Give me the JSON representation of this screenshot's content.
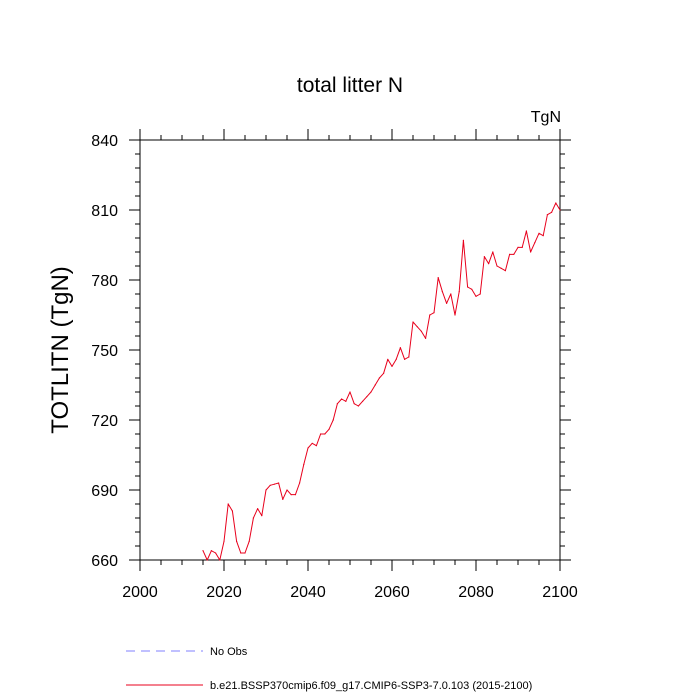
{
  "chart_data": {
    "type": "line",
    "title": "total litter N",
    "units_label": "TgN",
    "ylabel": "TOTLITN  (TgN)",
    "xlabel": "",
    "xlim": [
      2000,
      2100
    ],
    "ylim": [
      660,
      840
    ],
    "x_ticks": [
      2000,
      2020,
      2040,
      2060,
      2080,
      2100
    ],
    "y_ticks": [
      660,
      690,
      720,
      750,
      780,
      810,
      840
    ],
    "x_ticks_labels": [
      "2000",
      "2020",
      "2040",
      "2060",
      "2080",
      "2100"
    ],
    "y_ticks_labels": [
      "660",
      "690",
      "720",
      "750",
      "780",
      "810",
      "840"
    ],
    "grid": false,
    "legend_position": "bottom",
    "legend": [
      {
        "label": "No Obs",
        "color": "#8080ff",
        "style": "dashed"
      },
      {
        "label": "b.e21.BSSP370cmip6.f09_g17.CMIP6-SSP3-7.0.103 (2015-2100)",
        "color": "#e8001c",
        "style": "solid"
      }
    ],
    "series": [
      {
        "name": "b.e21.BSSP370cmip6.f09_g17.CMIP6-SSP3-7.0.103 (2015-2100)",
        "color": "#e8001c",
        "x": [
          2015,
          2016,
          2017,
          2018,
          2019,
          2020,
          2021,
          2022,
          2023,
          2024,
          2025,
          2026,
          2027,
          2028,
          2029,
          2030,
          2031,
          2032,
          2033,
          2034,
          2035,
          2036,
          2037,
          2038,
          2039,
          2040,
          2041,
          2042,
          2043,
          2044,
          2045,
          2046,
          2047,
          2048,
          2049,
          2050,
          2051,
          2052,
          2053,
          2054,
          2055,
          2056,
          2057,
          2058,
          2059,
          2060,
          2061,
          2062,
          2063,
          2064,
          2065,
          2066,
          2067,
          2068,
          2069,
          2070,
          2071,
          2072,
          2073,
          2074,
          2075,
          2076,
          2077,
          2078,
          2079,
          2080,
          2081,
          2082,
          2083,
          2084,
          2085,
          2086,
          2087,
          2088,
          2089,
          2090,
          2091,
          2092,
          2093,
          2094,
          2095,
          2096,
          2097,
          2098,
          2099,
          2100
        ],
        "values": [
          664,
          660,
          664,
          663,
          660,
          668,
          684,
          681,
          668,
          663,
          663,
          668,
          678,
          682,
          679,
          690,
          692,
          692.5,
          693,
          686,
          690,
          688,
          688,
          693,
          701,
          708,
          710,
          709,
          714,
          714,
          716,
          720,
          727,
          729,
          728,
          732,
          727,
          726,
          728,
          730,
          732,
          735,
          738,
          740,
          746,
          743,
          746,
          751,
          746,
          747,
          762,
          760,
          758,
          755,
          765,
          766,
          781,
          775,
          770,
          774,
          765,
          775,
          797,
          777,
          776,
          773,
          774,
          790,
          787,
          792,
          786,
          785,
          784,
          791,
          791,
          794,
          794,
          801,
          792,
          796,
          800,
          799,
          808,
          809,
          813,
          810
        ]
      }
    ]
  }
}
